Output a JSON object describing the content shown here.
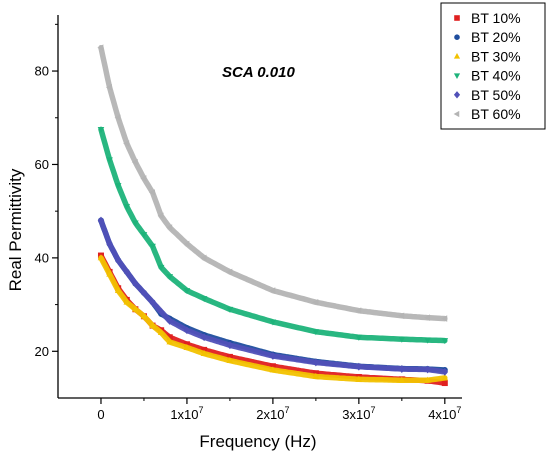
{
  "chart_data": {
    "type": "scatter",
    "title": "",
    "annotation": "SCA 0.010",
    "xlabel": "Frequency (Hz)",
    "ylabel": "Real Permittivity",
    "xlim": [
      -5000000,
      42000000
    ],
    "ylim": [
      10,
      92
    ],
    "x_ticks": [
      {
        "value": 0,
        "mantissa": "0",
        "exp": ""
      },
      {
        "value": 10000000,
        "mantissa": "1x10",
        "exp": "7"
      },
      {
        "value": 20000000,
        "mantissa": "2x10",
        "exp": "7"
      },
      {
        "value": 30000000,
        "mantissa": "3x10",
        "exp": "7"
      },
      {
        "value": 40000000,
        "mantissa": "4x10",
        "exp": "7"
      }
    ],
    "y_ticks": [
      20,
      40,
      60,
      80
    ],
    "grid": false,
    "legend_position": "top-right",
    "x": [
      0,
      1000000,
      2000000,
      3000000,
      4000000,
      5000000,
      6000000,
      7000000,
      8000000,
      10000000,
      12000000,
      15000000,
      20000000,
      25000000,
      30000000,
      35000000,
      38000000,
      40000000
    ],
    "series": [
      {
        "name": "BT 10%",
        "marker": "square",
        "color": "#e02020",
        "values": [
          40.5,
          37,
          33.5,
          31,
          29,
          27.5,
          25.5,
          24.5,
          23,
          21.5,
          20.3,
          18.8,
          16.8,
          15.3,
          14.5,
          14,
          13.7,
          13.2
        ]
      },
      {
        "name": "BT 20%",
        "marker": "circle",
        "color": "#1f4e9e",
        "values": [
          48,
          43,
          39.5,
          37,
          34.5,
          32.5,
          30.5,
          28,
          27,
          25,
          23.5,
          21.8,
          19.3,
          17.8,
          16.8,
          16.3,
          16.2,
          16
        ]
      },
      {
        "name": "BT 30%",
        "marker": "triangle-up",
        "color": "#f2c200",
        "values": [
          40,
          36.5,
          33,
          30.5,
          29,
          27.5,
          25.5,
          24,
          22,
          20.8,
          19.5,
          18,
          16,
          14.6,
          14,
          13.8,
          13.8,
          14.3
        ]
      },
      {
        "name": "BT 40%",
        "marker": "triangle-down",
        "color": "#1db37a",
        "values": [
          67.5,
          61,
          55.5,
          51,
          47.5,
          45,
          42.5,
          38,
          36,
          33,
          31.3,
          29,
          26.3,
          24.2,
          23,
          22.6,
          22.4,
          22.3
        ]
      },
      {
        "name": "BT 50%",
        "marker": "diamond",
        "color": "#5050b8",
        "values": [
          48,
          43,
          39.5,
          37,
          34.5,
          32.5,
          30.5,
          28.5,
          26.5,
          24.5,
          23,
          21.3,
          19,
          17.6,
          16.7,
          16.2,
          16.1,
          15.6
        ]
      },
      {
        "name": "BT 60%",
        "marker": "triangle-left",
        "color": "#b4b4b4",
        "values": [
          85,
          76.5,
          70,
          64.5,
          60.5,
          57,
          54,
          49,
          46.5,
          43,
          40,
          37,
          33,
          30.5,
          28.7,
          27.6,
          27.2,
          27
        ]
      }
    ]
  }
}
